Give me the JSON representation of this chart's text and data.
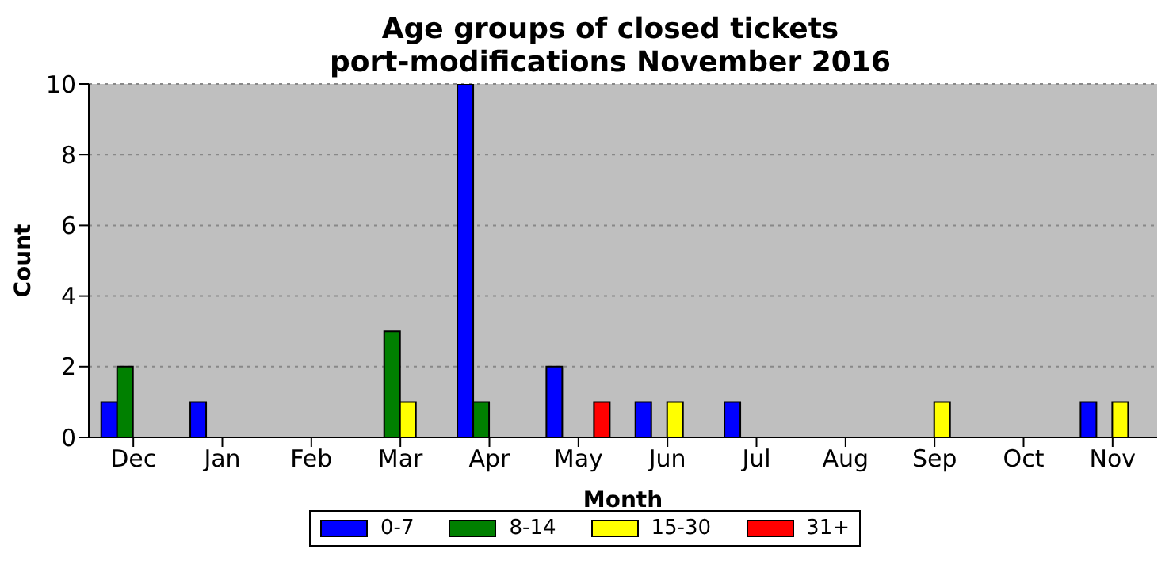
{
  "chart_data": {
    "type": "bar",
    "title": "Age groups of closed tickets\nport-modifications November 2016",
    "xlabel": "Month",
    "ylabel": "Count",
    "categories": [
      "Dec",
      "Jan",
      "Feb",
      "Mar",
      "Apr",
      "May",
      "Jun",
      "Jul",
      "Aug",
      "Sep",
      "Oct",
      "Nov"
    ],
    "series": [
      {
        "name": "0-7",
        "color": "#0000ff",
        "values": [
          1,
          1,
          0,
          0,
          10,
          2,
          1,
          1,
          0,
          0,
          0,
          1
        ]
      },
      {
        "name": "8-14",
        "color": "#008000",
        "values": [
          2,
          0,
          0,
          3,
          1,
          0,
          0,
          0,
          0,
          0,
          0,
          0
        ]
      },
      {
        "name": "15-30",
        "color": "#ffff00",
        "values": [
          0,
          0,
          0,
          1,
          0,
          0,
          1,
          0,
          0,
          1,
          0,
          1
        ]
      },
      {
        "name": "31+",
        "color": "#ff0000",
        "values": [
          0,
          0,
          0,
          0,
          0,
          1,
          0,
          0,
          0,
          0,
          0,
          0
        ]
      }
    ],
    "ylim": [
      0,
      10
    ],
    "yticks": [
      0,
      2,
      4,
      6,
      8,
      10
    ],
    "grid": "y",
    "legend": "bottom"
  }
}
